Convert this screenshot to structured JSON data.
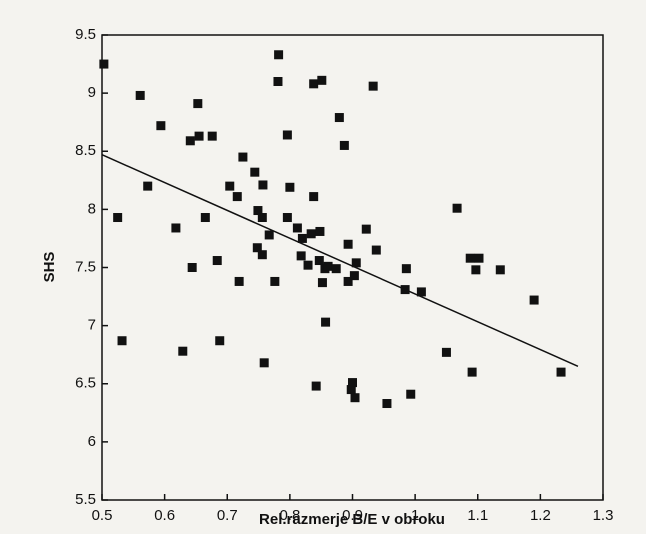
{
  "chart_data": {
    "type": "scatter",
    "xlabel": "Rel.razmerje B/E v obroku",
    "ylabel": "SHS",
    "xlim": [
      0.5,
      1.3
    ],
    "xticks": [
      0.5,
      0.6,
      0.7,
      0.8,
      0.9,
      1,
      1.1,
      1.2,
      1.3
    ],
    "ylim": [
      5.5,
      9.5
    ],
    "yticks": [
      5.5,
      6,
      6.5,
      7,
      7.5,
      8,
      8.5,
      9,
      9.5
    ],
    "color": "#111111",
    "x": [
      0.503,
      0.561,
      0.594,
      0.573,
      0.525,
      0.532,
      0.618,
      0.644,
      0.641,
      0.653,
      0.655,
      0.676,
      0.665,
      0.684,
      0.704,
      0.716,
      0.725,
      0.744,
      0.757,
      0.749,
      0.756,
      0.748,
      0.756,
      0.767,
      0.781,
      0.782,
      0.796,
      0.8,
      0.796,
      0.812,
      0.818,
      0.82,
      0.829,
      0.834,
      0.838,
      0.838,
      0.851,
      0.848,
      0.847,
      0.856,
      0.852,
      0.861,
      0.874,
      0.842,
      0.857,
      0.893,
      0.893,
      0.906,
      0.879,
      0.887,
      0.903,
      0.922,
      0.938,
      0.898,
      0.9,
      0.933,
      0.759,
      0.629,
      0.688,
      0.719,
      0.776,
      0.904,
      0.955,
      0.986,
      0.984,
      0.993,
      1.01,
      1.067,
      1.05,
      1.088,
      1.091,
      1.102,
      1.097,
      1.136,
      1.19,
      1.233
    ],
    "y": [
      9.25,
      8.98,
      8.72,
      8.2,
      7.93,
      6.87,
      7.84,
      7.5,
      8.59,
      8.91,
      8.63,
      8.63,
      7.93,
      7.56,
      8.2,
      8.11,
      8.45,
      8.32,
      8.21,
      7.99,
      7.93,
      7.67,
      7.61,
      7.78,
      9.1,
      9.33,
      8.64,
      8.19,
      7.93,
      7.84,
      7.6,
      7.75,
      7.52,
      7.79,
      8.11,
      9.08,
      9.11,
      7.81,
      7.56,
      7.49,
      7.37,
      7.51,
      7.49,
      6.48,
      7.03,
      7.38,
      7.7,
      7.54,
      8.79,
      8.55,
      7.43,
      7.83,
      7.65,
      6.45,
      6.51,
      9.06,
      6.68,
      6.78,
      6.87,
      7.38,
      7.38,
      6.38,
      6.33,
      7.49,
      7.31,
      6.41,
      7.29,
      8.01,
      6.77,
      7.58,
      6.6,
      7.58,
      7.48,
      7.48,
      7.22,
      6.6
    ],
    "trend": {
      "x": [
        0.5,
        1.26
      ],
      "y": [
        8.47,
        6.65
      ]
    }
  }
}
